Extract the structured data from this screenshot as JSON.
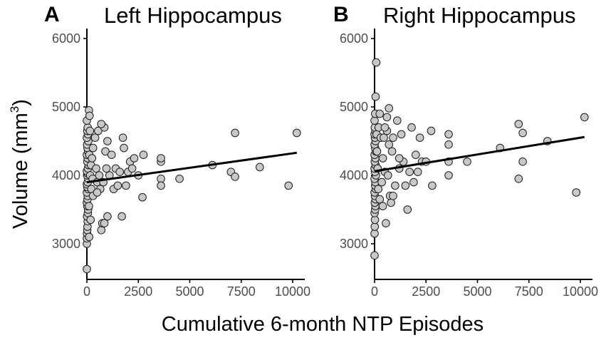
{
  "chart_data": {
    "type": "scatter",
    "xlabel": "Cumulative 6-month NTP Episodes",
    "ylabel": "Volume (mm",
    "ylabel_sup": "3",
    "ylabel_close": ")",
    "xlim": [
      0,
      10500
    ],
    "ylim": [
      2500,
      6000
    ],
    "xticks": [
      0,
      2500,
      5000,
      7500,
      10000
    ],
    "yticks": [
      3000,
      4000,
      5000,
      6000
    ],
    "xtick_labels": [
      "0",
      "2500",
      "5000",
      "7500",
      "10000"
    ],
    "ytick_labels": [
      "3000",
      "4000",
      "5000",
      "6000"
    ],
    "panels": [
      {
        "letter": "A",
        "title": "Left Hippocampus",
        "fit_line": {
          "x": [
            0,
            10200
          ],
          "y": [
            3900,
            4330
          ]
        },
        "points": [
          [
            0,
            2630
          ],
          [
            0,
            3000
          ],
          [
            0,
            3080
          ],
          [
            10,
            3150
          ],
          [
            20,
            3200
          ],
          [
            30,
            3250
          ],
          [
            40,
            3330
          ],
          [
            10,
            3400
          ],
          [
            50,
            3450
          ],
          [
            60,
            3500
          ],
          [
            20,
            3550
          ],
          [
            0,
            3600
          ],
          [
            30,
            3650
          ],
          [
            40,
            3700
          ],
          [
            0,
            3750
          ],
          [
            60,
            3800
          ],
          [
            20,
            3830
          ],
          [
            0,
            3870
          ],
          [
            40,
            3900
          ],
          [
            70,
            3950
          ],
          [
            10,
            4000
          ],
          [
            30,
            4030
          ],
          [
            0,
            4060
          ],
          [
            50,
            4100
          ],
          [
            80,
            4150
          ],
          [
            20,
            4200
          ],
          [
            40,
            4250
          ],
          [
            0,
            4300
          ],
          [
            60,
            4350
          ],
          [
            30,
            4400
          ],
          [
            10,
            4450
          ],
          [
            70,
            4500
          ],
          [
            0,
            4550
          ],
          [
            50,
            4600
          ],
          [
            20,
            4650
          ],
          [
            40,
            4700
          ],
          [
            0,
            4800
          ],
          [
            100,
            4950
          ],
          [
            130,
            4870
          ],
          [
            150,
            4650
          ],
          [
            120,
            4300
          ],
          [
            160,
            4000
          ],
          [
            100,
            3550
          ],
          [
            180,
            3350
          ],
          [
            110,
            3100
          ],
          [
            200,
            4150
          ],
          [
            220,
            3800
          ],
          [
            250,
            4250
          ],
          [
            280,
            3950
          ],
          [
            300,
            3700
          ],
          [
            400,
            4550
          ],
          [
            450,
            4100
          ],
          [
            500,
            3900
          ],
          [
            550,
            4650
          ],
          [
            600,
            4000
          ],
          [
            650,
            3800
          ],
          [
            700,
            3200
          ],
          [
            750,
            3300
          ],
          [
            800,
            3900
          ],
          [
            850,
            4700
          ],
          [
            900,
            4350
          ],
          [
            950,
            4100
          ],
          [
            1000,
            3400
          ],
          [
            1100,
            4000
          ],
          [
            1200,
            4300
          ],
          [
            1300,
            3800
          ],
          [
            1400,
            4100
          ],
          [
            1500,
            3850
          ],
          [
            1600,
            4050
          ],
          [
            1700,
            3400
          ],
          [
            1750,
            4550
          ],
          [
            1800,
            4400
          ],
          [
            1900,
            3850
          ],
          [
            2000,
            4050
          ],
          [
            2100,
            4200
          ],
          [
            2200,
            4100
          ],
          [
            2300,
            4250
          ],
          [
            2500,
            4000
          ],
          [
            2700,
            3680
          ],
          [
            2750,
            4300
          ],
          [
            3600,
            4200
          ],
          [
            3600,
            4250
          ],
          [
            3600,
            3950
          ],
          [
            3600,
            3850
          ],
          [
            4500,
            3950
          ],
          [
            6100,
            4150
          ],
          [
            7000,
            4050
          ],
          [
            7200,
            3980
          ],
          [
            7200,
            4620
          ],
          [
            8400,
            4120
          ],
          [
            9800,
            3850
          ],
          [
            10200,
            4620
          ],
          [
            700,
            4750
          ],
          [
            1000,
            4500
          ],
          [
            300,
            4400
          ],
          [
            500,
            3750
          ],
          [
            850,
            3300
          ]
        ]
      },
      {
        "letter": "B",
        "title": "Right Hippocampus",
        "fit_line": {
          "x": [
            0,
            10200
          ],
          "y": [
            4060,
            4560
          ]
        },
        "points": [
          [
            0,
            2830
          ],
          [
            0,
            3150
          ],
          [
            10,
            3250
          ],
          [
            20,
            3350
          ],
          [
            0,
            3450
          ],
          [
            30,
            3500
          ],
          [
            40,
            3550
          ],
          [
            10,
            3600
          ],
          [
            50,
            3650
          ],
          [
            20,
            3700
          ],
          [
            0,
            3750
          ],
          [
            60,
            3800
          ],
          [
            30,
            3850
          ],
          [
            40,
            3900
          ],
          [
            0,
            3950
          ],
          [
            70,
            4000
          ],
          [
            20,
            4050
          ],
          [
            0,
            4100
          ],
          [
            50,
            4150
          ],
          [
            10,
            4200
          ],
          [
            40,
            4250
          ],
          [
            0,
            4300
          ],
          [
            60,
            4350
          ],
          [
            30,
            4400
          ],
          [
            0,
            4450
          ],
          [
            50,
            4500
          ],
          [
            20,
            4550
          ],
          [
            0,
            4600
          ],
          [
            40,
            4650
          ],
          [
            10,
            4700
          ],
          [
            0,
            4800
          ],
          [
            30,
            4900
          ],
          [
            50,
            5150
          ],
          [
            80,
            5650
          ],
          [
            100,
            4600
          ],
          [
            120,
            4350
          ],
          [
            150,
            4100
          ],
          [
            180,
            3800
          ],
          [
            200,
            4700
          ],
          [
            250,
            3650
          ],
          [
            300,
            4550
          ],
          [
            350,
            3900
          ],
          [
            400,
            4250
          ],
          [
            450,
            4550
          ],
          [
            500,
            4050
          ],
          [
            550,
            3300
          ],
          [
            600,
            4650
          ],
          [
            650,
            4000
          ],
          [
            700,
            4980
          ],
          [
            750,
            3700
          ],
          [
            800,
            3600
          ],
          [
            850,
            4350
          ],
          [
            900,
            4550
          ],
          [
            1000,
            3850
          ],
          [
            1100,
            4800
          ],
          [
            1200,
            4100
          ],
          [
            1300,
            4600
          ],
          [
            1400,
            4200
          ],
          [
            1500,
            3850
          ],
          [
            1600,
            3500
          ],
          [
            1700,
            4050
          ],
          [
            1800,
            4700
          ],
          [
            1900,
            3900
          ],
          [
            2000,
            4300
          ],
          [
            2100,
            4050
          ],
          [
            2200,
            4550
          ],
          [
            2300,
            4200
          ],
          [
            2500,
            4200
          ],
          [
            2750,
            4650
          ],
          [
            2800,
            3850
          ],
          [
            3600,
            4600
          ],
          [
            3600,
            4450
          ],
          [
            3600,
            4200
          ],
          [
            3600,
            4000
          ],
          [
            4500,
            4200
          ],
          [
            6100,
            4400
          ],
          [
            7000,
            4750
          ],
          [
            7000,
            3950
          ],
          [
            7200,
            4620
          ],
          [
            7200,
            4200
          ],
          [
            8400,
            4500
          ],
          [
            9800,
            3750
          ],
          [
            10200,
            4850
          ],
          [
            250,
            4900
          ],
          [
            500,
            4700
          ],
          [
            700,
            4450
          ],
          [
            900,
            3700
          ],
          [
            1200,
            4250
          ],
          [
            400,
            3550
          ],
          [
            600,
            4850
          ]
        ]
      }
    ]
  }
}
